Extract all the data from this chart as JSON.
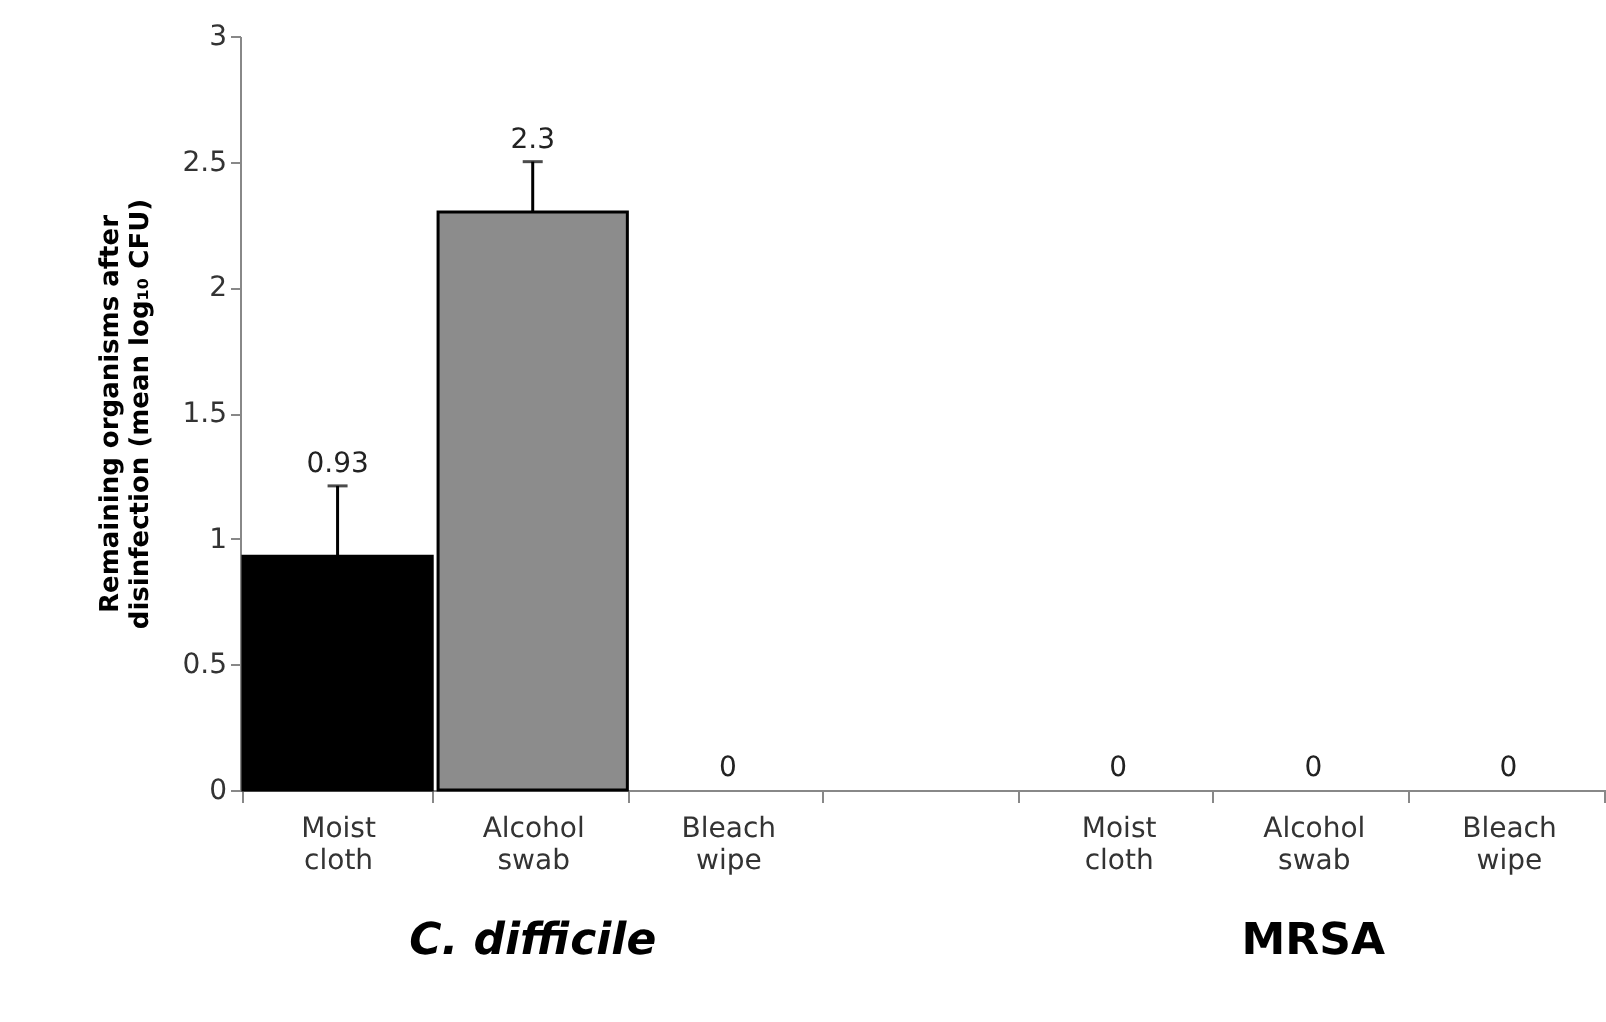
{
  "chart_data": {
    "type": "bar",
    "ylabel": "Remaining organisms after disinfection (mean log₁₀ CFU)",
    "categories": [
      "Moist cloth",
      "Alcohol swab",
      "Bleach wipe",
      null,
      "Moist cloth",
      "Alcohol swab",
      "Bleach wipe"
    ],
    "values": [
      0.93,
      2.3,
      0,
      null,
      0,
      0,
      0
    ],
    "colors": [
      "#000000",
      "#8c8c8c",
      "#ffffff",
      null,
      "#ffffff",
      "#ffffff",
      "#ffffff"
    ],
    "errors": [
      [
        0.93,
        1.21
      ],
      [
        2.3,
        2.5
      ],
      null,
      null,
      null,
      null,
      null
    ],
    "data_labels": true,
    "ylim": [
      0,
      3
    ],
    "yticks": [
      0,
      0.5,
      1,
      1.5,
      2,
      2.5,
      3
    ],
    "annotations": [
      "C. difficile",
      "MRSA"
    ]
  }
}
